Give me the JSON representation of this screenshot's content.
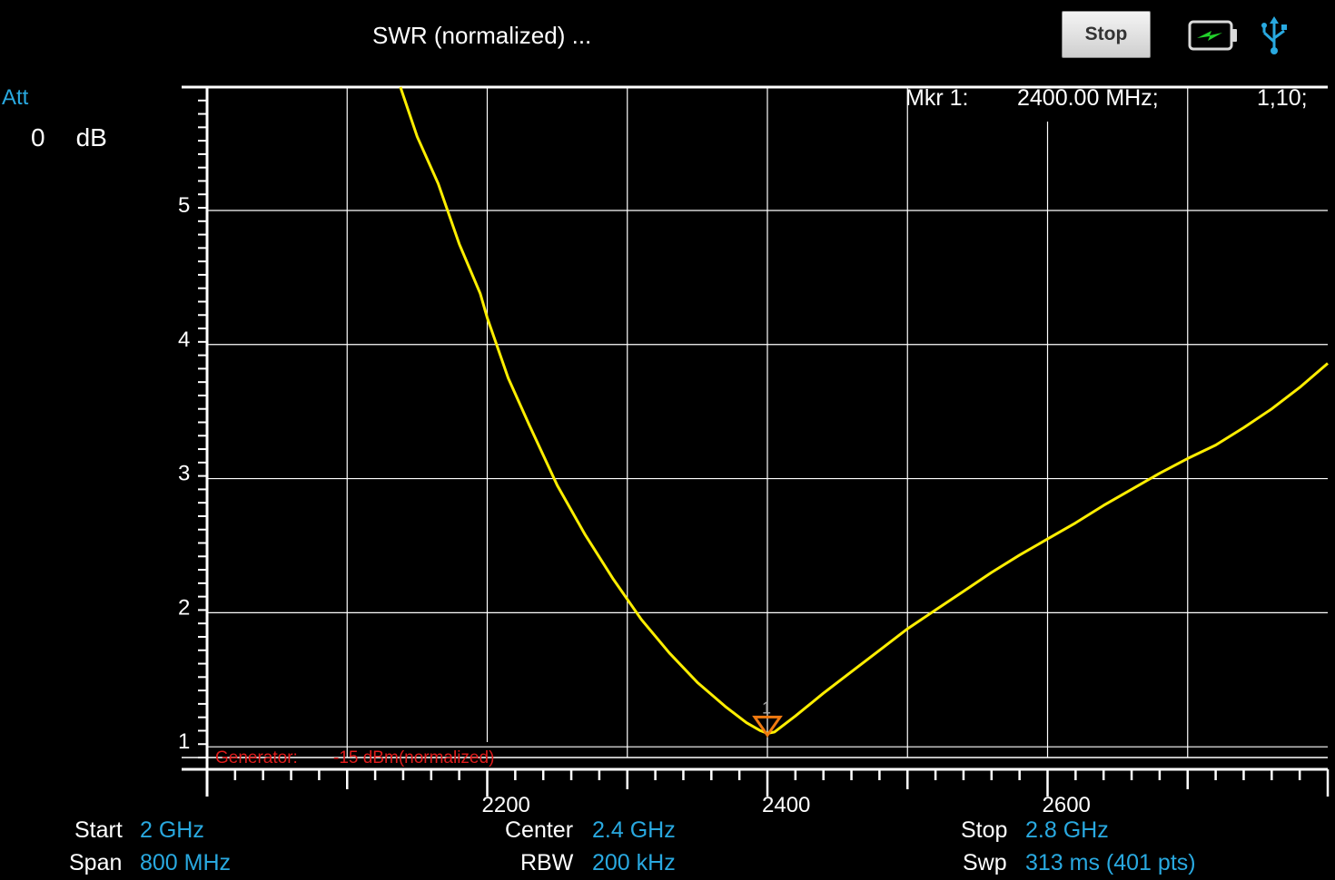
{
  "header": {
    "title": "SWR (normalized) ...",
    "stop_label": "Stop",
    "battery_icon": "battery-charging-icon",
    "usb_icon": "usb-icon"
  },
  "attenuation": {
    "label": "Att",
    "value": "0",
    "unit": "dB"
  },
  "marker": {
    "label": "Mkr 1:",
    "frequency": "2400.00 MHz;",
    "value": "1,10;",
    "number": "1",
    "color": "#f07a10"
  },
  "generator": {
    "label": "Generator:",
    "value": "-15 dBm",
    "note": "(normalized)"
  },
  "footer": {
    "start_label": "Start",
    "start_value": "2 GHz",
    "span_label": "Span",
    "span_value": "800 MHz",
    "center_label": "Center",
    "center_value": "2.4 GHz",
    "rbw_label": "RBW",
    "rbw_value": "200 kHz",
    "stop_label": "Stop",
    "stop_value": "2.8 GHz",
    "swp_label": "Swp",
    "swp_value": "313  ms (401 pts)"
  },
  "colors": {
    "trace": "#ffee00",
    "accent": "#29a9e0",
    "marker": "#f07a10",
    "generator": "#e01b1b",
    "grid": "#ffffff"
  },
  "chart_data": {
    "type": "line",
    "xlabel": "",
    "ylabel": "",
    "xlim": [
      2000,
      2800
    ],
    "ylim": [
      0.92,
      5.92
    ],
    "x_ticks": [
      2200,
      2400,
      2600
    ],
    "y_ticks": [
      1,
      2,
      3,
      4,
      5
    ],
    "grid": true,
    "series": [
      {
        "x": [
          2138,
          2150,
          2165,
          2180,
          2195,
          2200,
          2215,
          2230,
          2250,
          2270,
          2290,
          2310,
          2330,
          2350,
          2370,
          2385,
          2395,
          2400,
          2405,
          2420,
          2440,
          2460,
          2480,
          2500,
          2520,
          2540,
          2560,
          2580,
          2600,
          2620,
          2640,
          2660,
          2680,
          2700,
          2720,
          2740,
          2760,
          2780,
          2800
        ],
        "y": [
          5.92,
          5.55,
          5.2,
          4.75,
          4.38,
          4.2,
          3.75,
          3.4,
          2.95,
          2.58,
          2.25,
          1.95,
          1.7,
          1.48,
          1.3,
          1.18,
          1.12,
          1.1,
          1.11,
          1.23,
          1.4,
          1.56,
          1.72,
          1.88,
          2.02,
          2.16,
          2.3,
          2.43,
          2.55,
          2.67,
          2.8,
          2.92,
          3.04,
          3.15,
          3.25,
          3.38,
          3.52,
          3.68,
          3.86
        ]
      }
    ],
    "marker": {
      "x": 2400,
      "y": 1.1,
      "label": "1"
    }
  }
}
